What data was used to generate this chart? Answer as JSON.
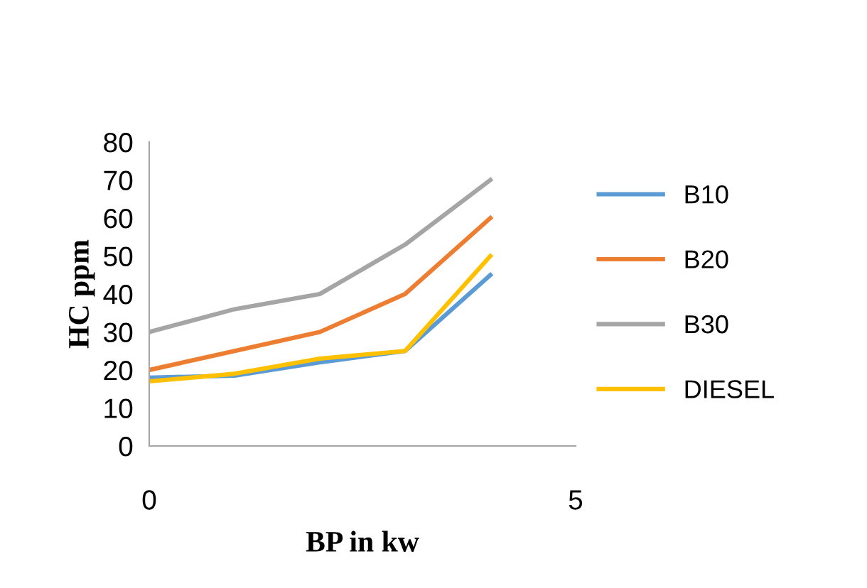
{
  "chart_data": {
    "type": "line",
    "xlabel": "BP in kw",
    "ylabel": "HC ppm",
    "x": [
      0,
      1,
      2,
      3,
      4
    ],
    "series": [
      {
        "name": "B10",
        "color": "#5b9bd5",
        "values": [
          18,
          18.5,
          22,
          25,
          45
        ]
      },
      {
        "name": "B20",
        "color": "#ed7d31",
        "values": [
          20,
          25,
          30,
          40,
          60
        ]
      },
      {
        "name": "B30",
        "color": "#a5a5a5",
        "values": [
          30,
          36,
          40,
          53,
          70
        ]
      },
      {
        "name": "DIESEL",
        "color": "#ffc000",
        "values": [
          17,
          19,
          23,
          25,
          50
        ]
      }
    ],
    "xlim": [
      0,
      5
    ],
    "xticks": [
      0,
      5
    ],
    "ylim": [
      0,
      80
    ],
    "yticks": [
      0,
      10,
      20,
      30,
      40,
      50,
      60,
      70,
      80
    ],
    "grid": false,
    "legend": "right",
    "marker": "none",
    "line_style": "solid"
  }
}
